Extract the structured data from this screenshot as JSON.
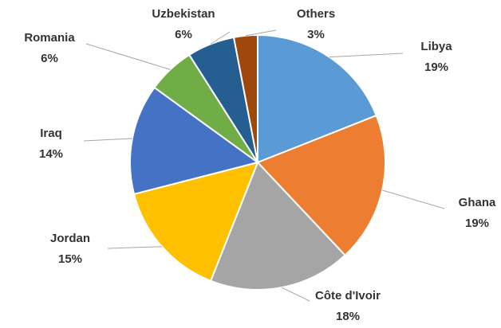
{
  "chart_data": {
    "type": "pie",
    "categories": [
      "Libya",
      "Ghana",
      "Côte d'Ivoir",
      "Jordan",
      "Iraq",
      "Romania",
      "Uzbekistan",
      "Others"
    ],
    "values": [
      19,
      19,
      18,
      15,
      14,
      6,
      6,
      3
    ],
    "value_labels": [
      "19%",
      "19%",
      "18%",
      "15%",
      "14%",
      "6%",
      "6%",
      "3%"
    ],
    "colors": [
      "#5b9bd5",
      "#ed7d31",
      "#a5a5a5",
      "#ffc000",
      "#4472c4",
      "#70ad47",
      "#255e91",
      "#9e480e"
    ]
  }
}
